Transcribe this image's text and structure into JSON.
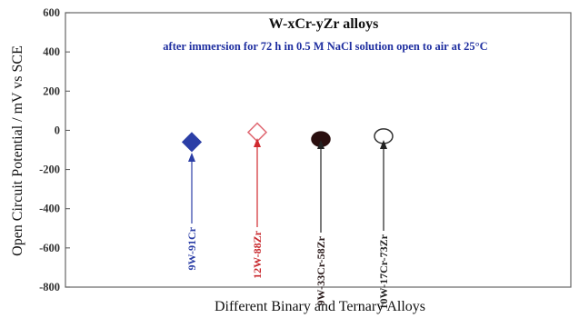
{
  "chart_data": {
    "type": "scatter",
    "title": "W-xCr-yZr alloys",
    "subtitle": "after immersion for 72 h in 0.5 M NaCl solution open to air at 25°C",
    "xlabel": "Different Binary and Ternary Alloys",
    "ylabel": "Open Circuit Potential / mV vs SCE",
    "ylim": [
      -800,
      600
    ],
    "yticks": [
      "600",
      "400",
      "200",
      "0",
      "-200",
      "-400",
      "-600",
      "-800"
    ],
    "grid": false,
    "points": [
      {
        "label": "9W-91Cr",
        "value": -60,
        "marker": "diamond-filled",
        "color": "#2b3ea6"
      },
      {
        "label": "12W-88Zr",
        "value": -10,
        "marker": "diamond-open",
        "color": "#e06a74"
      },
      {
        "label": "9W-33Cr-58Zr",
        "value": -45,
        "marker": "circle-filled",
        "color": "#2a0f0f"
      },
      {
        "label": "10W-17Cr-73Zr",
        "value": -30,
        "marker": "circle-open",
        "color": "#333333"
      }
    ]
  }
}
